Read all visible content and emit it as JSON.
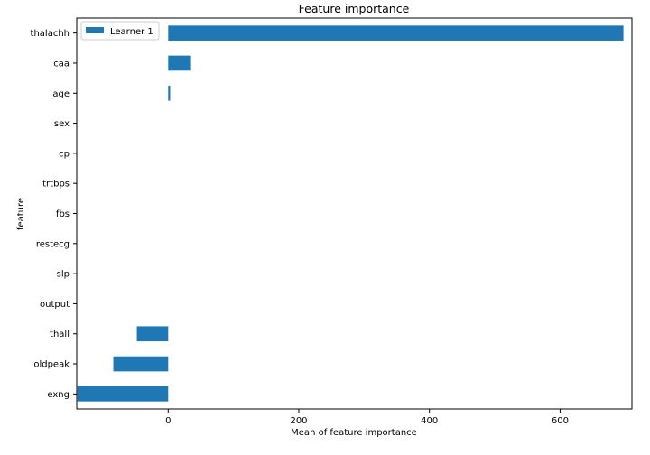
{
  "chart_data": {
    "type": "bar",
    "orientation": "horizontal",
    "title": "Feature importance",
    "xlabel": "Mean of feature importance",
    "ylabel": "feature",
    "xlim": [
      -140,
      710
    ],
    "xticks": [
      0,
      200,
      400,
      600
    ],
    "grid": false,
    "legend_position": "top-left",
    "categories": [
      "thalachh",
      "caa",
      "age",
      "sex",
      "cp",
      "trtbps",
      "fbs",
      "restecg",
      "slp",
      "output",
      "thall",
      "oldpeak",
      "exng"
    ],
    "series": [
      {
        "name": "Learner 1",
        "color": "#1f77b4",
        "values": [
          697,
          35,
          3,
          0,
          0,
          0,
          0,
          0,
          0,
          0,
          -48,
          -84,
          -139
        ]
      }
    ]
  }
}
